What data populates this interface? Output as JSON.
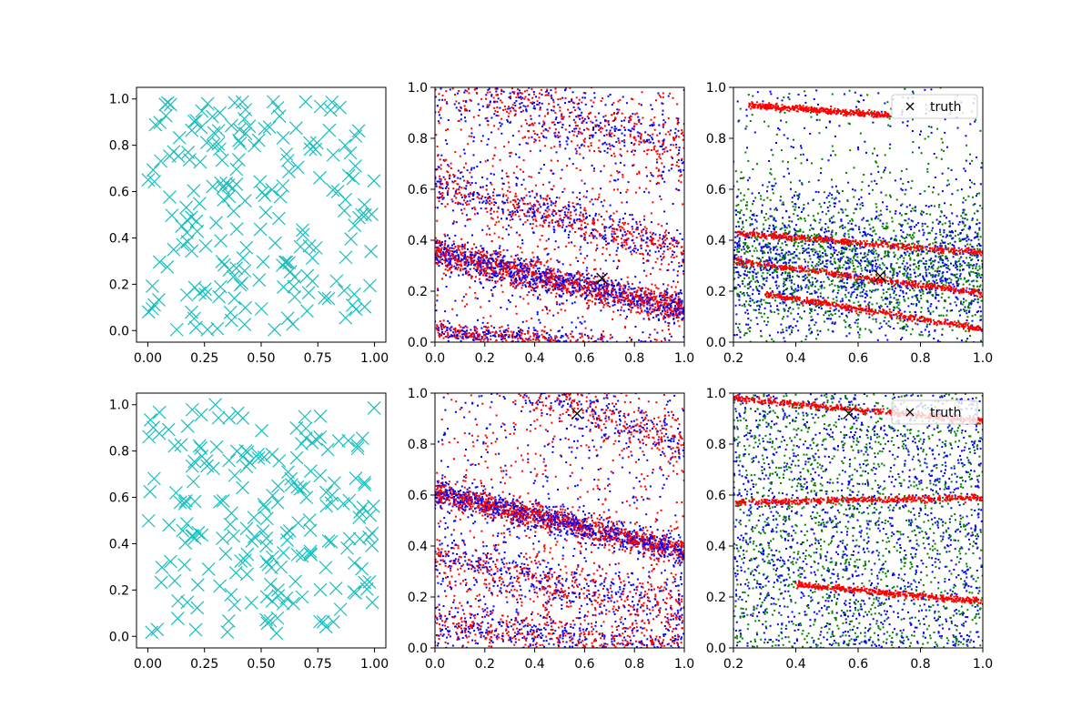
{
  "chart_data": [
    {
      "panel": "top-left",
      "type": "scatter",
      "xlim": [
        -0.05,
        1.05
      ],
      "ylim": [
        -0.05,
        1.05
      ],
      "xticks": [
        "0.00",
        "0.25",
        "0.50",
        "0.75",
        "1.00"
      ],
      "yticks": [
        "0.0",
        "0.2",
        "0.4",
        "0.6",
        "0.8",
        "1.0"
      ],
      "marker": "x",
      "marker_color": "#17bfbf",
      "series": [
        {
          "points": 200,
          "distribution": "uniform on [0,1]×[0,1]"
        }
      ]
    },
    {
      "panel": "top-middle",
      "type": "scatter",
      "xlim": [
        0,
        1
      ],
      "ylim": [
        0,
        1
      ],
      "xticks": [
        "0.0",
        "0.2",
        "0.4",
        "0.6",
        "0.8",
        "1.0"
      ],
      "yticks": [
        "0.0",
        "0.2",
        "0.4",
        "0.6",
        "0.8",
        "1.0"
      ],
      "colors": [
        "#ff0000",
        "#0000ff"
      ],
      "bands": [
        {
          "y_at_x0": 0.35,
          "y_at_x1": 0.13,
          "width": 0.06
        },
        {
          "y_at_x0": 0.62,
          "y_at_x1": 0.35,
          "width": 0.08
        },
        {
          "y_at_x0": 0.05,
          "y_at_x1": -0.05,
          "width": 0.04
        },
        {
          "y_at_x0": 1.05,
          "y_at_x1": 0.75,
          "width": 0.15
        }
      ],
      "truth": {
        "x": 0.67,
        "y": 0.25
      }
    },
    {
      "panel": "top-right",
      "type": "scatter",
      "xlim": [
        0.2,
        1.0
      ],
      "ylim": [
        0,
        1
      ],
      "xticks": [
        "0.2",
        "0.4",
        "0.6",
        "0.8",
        "1.0"
      ],
      "yticks": [
        "0.0",
        "0.2",
        "0.4",
        "0.6",
        "0.8",
        "1.0"
      ],
      "colors": [
        "#ff0000",
        "#0000ff",
        "#008000"
      ],
      "red_lines": [
        {
          "x0": 0.2,
          "y0": 0.32,
          "x1": 1.0,
          "y1": 0.19
        },
        {
          "x0": 0.2,
          "y0": 0.43,
          "x1": 1.0,
          "y1": 0.35
        },
        {
          "x0": 0.25,
          "y0": 0.93,
          "x1": 0.7,
          "y1": 0.89
        },
        {
          "x0": 0.3,
          "y0": 0.19,
          "x1": 1.0,
          "y1": 0.05
        }
      ],
      "legend": {
        "label": "truth",
        "placement": "top-right"
      },
      "truth": {
        "x": 0.67,
        "y": 0.26
      }
    },
    {
      "panel": "bottom-left",
      "type": "scatter",
      "xlim": [
        -0.05,
        1.05
      ],
      "ylim": [
        -0.05,
        1.05
      ],
      "xticks": [
        "0.00",
        "0.25",
        "0.50",
        "0.75",
        "1.00"
      ],
      "yticks": [
        "0.0",
        "0.2",
        "0.4",
        "0.6",
        "0.8",
        "1.0"
      ],
      "marker": "x",
      "marker_color": "#17bfbf",
      "series": [
        {
          "points": 200,
          "distribution": "uniform on [0,1]×[0,1]"
        }
      ]
    },
    {
      "panel": "bottom-middle",
      "type": "scatter",
      "xlim": [
        0,
        1
      ],
      "ylim": [
        0,
        1
      ],
      "xticks": [
        "0.0",
        "0.2",
        "0.4",
        "0.6",
        "0.8",
        "1.0"
      ],
      "yticks": [
        "0.0",
        "0.2",
        "0.4",
        "0.6",
        "0.8",
        "1.0"
      ],
      "colors": [
        "#ff0000",
        "#0000ff"
      ],
      "bands": [
        {
          "y_at_x0": 0.61,
          "y_at_x1": 0.38,
          "width": 0.05
        },
        {
          "y_at_x0": 1.2,
          "y_at_x1": 0.78,
          "width": 0.1
        },
        {
          "y_at_x0": 0.35,
          "y_at_x1": 0.15,
          "width": 0.1
        },
        {
          "y_at_x0": 0.1,
          "y_at_x1": 0.0,
          "width": 0.08
        }
      ],
      "truth": {
        "x": 0.57,
        "y": 0.92
      }
    },
    {
      "panel": "bottom-right",
      "type": "scatter",
      "xlim": [
        0.2,
        1.0
      ],
      "ylim": [
        0,
        1
      ],
      "xticks": [
        "0.2",
        "0.4",
        "0.6",
        "0.8",
        "1.0"
      ],
      "yticks": [
        "0.0",
        "0.2",
        "0.4",
        "0.6",
        "0.8",
        "1.0"
      ],
      "colors": [
        "#ff0000",
        "#0000ff",
        "#008000"
      ],
      "red_lines": [
        {
          "x0": 0.2,
          "y0": 0.98,
          "x1": 1.0,
          "y1": 0.89
        },
        {
          "x0": 0.2,
          "y0": 0.57,
          "x1": 1.0,
          "y1": 0.59
        },
        {
          "x0": 0.4,
          "y0": 0.25,
          "x1": 1.0,
          "y1": 0.18
        }
      ],
      "legend": {
        "label": "truth",
        "placement": "top-right"
      },
      "truth": {
        "x": 0.57,
        "y": 0.92
      }
    }
  ]
}
